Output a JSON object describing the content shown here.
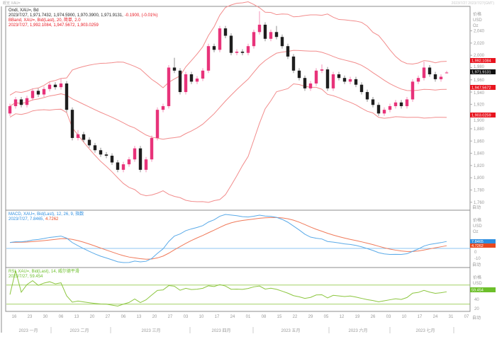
{
  "window": {
    "title": "概览 XAU=",
    "timestamps": "2023/7/27   2023/7/27(GMT)"
  },
  "legend": {
    "main_line1": "Ondl, XAU=, Bd",
    "main_line2": "2023/7/27, 1,971.7432, 1,974.5900, 1,970.3900, 1,971.9131,",
    "main_change": "-0.1900, (-0.01%)",
    "bband_line1": "BBand, XAU=, Bid(Last), 20, 简单, 2.0",
    "bband_line2": "2023/7/27, 1,992.1084, 1,947.5672, 1,903.0259",
    "macd_line1": "MACD, XAU=, Bid(Last), 12, 26, 9, 指数",
    "macd_line2a": "2023/7/27, 7.8465,",
    "macd_line2b": "4.7262",
    "rsi_line1": "RSI, XAU=, Bid(Last), 14, 威尔德平滑",
    "rsi_line2": "2023/7/27, 59.454"
  },
  "axis": {
    "unit_label": "价格",
    "currency": "USD",
    "unit": "Oz",
    "auto_label": "自动",
    "price_ticks": [
      "2,040",
      "2,020",
      "2,000",
      "1,980",
      "1,960",
      "1,940",
      "1,920",
      "1,900",
      "1,880",
      "1,860",
      "1,840",
      "1,820",
      "1,800",
      "1,780",
      "1,760"
    ],
    "macd_ticks": [
      "0",
      "-10"
    ],
    "rsi_ticks": [
      "40",
      "20"
    ],
    "date_ticks": [
      "16",
      "23",
      "30",
      "06",
      "13",
      "20",
      "27",
      "06",
      "13",
      "20",
      "27",
      "03",
      "10",
      "17",
      "24",
      "01",
      "08",
      "15",
      "22",
      "29",
      "05",
      "12",
      "19",
      "26",
      "03",
      "10",
      "17",
      "24",
      "31",
      "07"
    ],
    "months": [
      "2023 一月",
      "2023 二月",
      "2023 三月",
      "2023 四月",
      "2023 五月",
      "2023 六月",
      "2023 七月"
    ]
  },
  "price_tags": {
    "bband_upper": "1,992.1084",
    "last": "1,971.9131",
    "bband_middle": "1,947.5672",
    "bband_lower": "1,903.0259",
    "macd": "7.8465",
    "macd_signal": "4.7262",
    "rsi": "59.454"
  },
  "colors": {
    "up": "#e8337a",
    "down": "#1e1e1e",
    "band": "#f28c8c",
    "macd": "#5aaae8",
    "signal": "#f07a5a",
    "rsi": "#8cc63f",
    "tag_red": "#e8141e",
    "tag_last": "#111111",
    "tag_blue": "#2d8ee0",
    "tag_orange": "#e8481e",
    "tag_green": "#6cbf2a"
  },
  "chart_data": {
    "type": "candlestick",
    "instrument": "XAU=",
    "ylim": [
      1755,
      2085
    ],
    "bbands": {
      "period": 20,
      "std": 2.0
    },
    "macd": {
      "fast": 12,
      "slow": 26,
      "signal": 9
    },
    "rsi": {
      "period": 14,
      "levels": [
        70,
        30
      ]
    },
    "ohlc": [
      [
        1905,
        1921,
        1901,
        1917
      ],
      [
        1917,
        1932,
        1913,
        1928
      ],
      [
        1928,
        1932,
        1915,
        1919
      ],
      [
        1919,
        1934,
        1915,
        1930
      ],
      [
        1930,
        1946,
        1926,
        1942
      ],
      [
        1942,
        1946,
        1932,
        1936
      ],
      [
        1936,
        1949,
        1932,
        1945
      ],
      [
        1945,
        1956,
        1941,
        1952
      ],
      [
        1952,
        1956,
        1944,
        1948
      ],
      [
        1948,
        1962,
        1944,
        1954
      ],
      [
        1954,
        1958,
        1907,
        1911
      ],
      [
        1911,
        1915,
        1861,
        1865
      ],
      [
        1865,
        1878,
        1861,
        1871
      ],
      [
        1871,
        1875,
        1858,
        1862
      ],
      [
        1862,
        1866,
        1849,
        1853
      ],
      [
        1853,
        1857,
        1841,
        1845
      ],
      [
        1845,
        1849,
        1834,
        1838
      ],
      [
        1838,
        1842,
        1832,
        1836
      ],
      [
        1836,
        1840,
        1821,
        1825
      ],
      [
        1825,
        1829,
        1809,
        1813
      ],
      [
        1813,
        1826,
        1809,
        1822
      ],
      [
        1822,
        1834,
        1818,
        1830
      ],
      [
        1830,
        1852,
        1826,
        1848
      ],
      [
        1848,
        1852,
        1809,
        1813
      ],
      [
        1813,
        1834,
        1809,
        1830
      ],
      [
        1830,
        1869,
        1826,
        1865
      ],
      [
        1865,
        1915,
        1861,
        1911
      ],
      [
        1911,
        1921,
        1907,
        1917
      ],
      [
        1917,
        1984,
        1913,
        1980
      ],
      [
        1980,
        1996,
        1971,
        1975
      ],
      [
        1975,
        1979,
        1936,
        1940
      ],
      [
        1940,
        1973,
        1936,
        1969
      ],
      [
        1969,
        1973,
        1953,
        1957
      ],
      [
        1957,
        1966,
        1953,
        1962
      ],
      [
        1962,
        1979,
        1958,
        1975
      ],
      [
        1975,
        2019,
        1971,
        2015
      ],
      [
        2015,
        2019,
        2005,
        2009
      ],
      [
        2009,
        2048,
        2005,
        2044
      ],
      [
        2044,
        2048,
        2028,
        2032
      ],
      [
        2032,
        2036,
        2000,
        2004
      ],
      [
        2004,
        2010,
        2000,
        2006
      ],
      [
        2006,
        2010,
        2000,
        2004
      ],
      [
        2004,
        2019,
        2000,
        2015
      ],
      [
        2015,
        2042,
        2011,
        2038
      ],
      [
        2038,
        2072,
        2034,
        2050
      ],
      [
        2050,
        2054,
        2023,
        2027
      ],
      [
        2027,
        2042,
        2023,
        2038
      ],
      [
        2038,
        2048,
        2026,
        2030
      ],
      [
        2030,
        2034,
        2011,
        2015
      ],
      [
        2015,
        2019,
        1994,
        1998
      ],
      [
        1998,
        2002,
        1971,
        1975
      ],
      [
        1975,
        1979,
        1959,
        1963
      ],
      [
        1963,
        1967,
        1942,
        1946
      ],
      [
        1946,
        1958,
        1942,
        1954
      ],
      [
        1954,
        1979,
        1950,
        1975
      ],
      [
        1975,
        1985,
        1971,
        1977
      ],
      [
        1977,
        1981,
        1942,
        1946
      ],
      [
        1946,
        1973,
        1942,
        1969
      ],
      [
        1969,
        1973,
        1959,
        1963
      ],
      [
        1963,
        1967,
        1953,
        1957
      ],
      [
        1957,
        1965,
        1953,
        1961
      ],
      [
        1961,
        1965,
        1948,
        1952
      ],
      [
        1952,
        1956,
        1936,
        1940
      ],
      [
        1940,
        1944,
        1924,
        1928
      ],
      [
        1928,
        1932,
        1915,
        1919
      ],
      [
        1919,
        1923,
        1901,
        1905
      ],
      [
        1905,
        1915,
        1901,
        1911
      ],
      [
        1911,
        1921,
        1907,
        1917
      ],
      [
        1917,
        1927,
        1913,
        1923
      ],
      [
        1923,
        1927,
        1913,
        1917
      ],
      [
        1917,
        1932,
        1913,
        1928
      ],
      [
        1928,
        1961,
        1924,
        1957
      ],
      [
        1957,
        1967,
        1953,
        1963
      ],
      [
        1963,
        1990,
        1959,
        1980
      ],
      [
        1980,
        1984,
        1965,
        1969
      ],
      [
        1969,
        1973,
        1957,
        1961
      ],
      [
        1961,
        1969,
        1957,
        1965
      ],
      [
        1971.7432,
        1974.59,
        1970.39,
        1971.9131
      ]
    ]
  }
}
